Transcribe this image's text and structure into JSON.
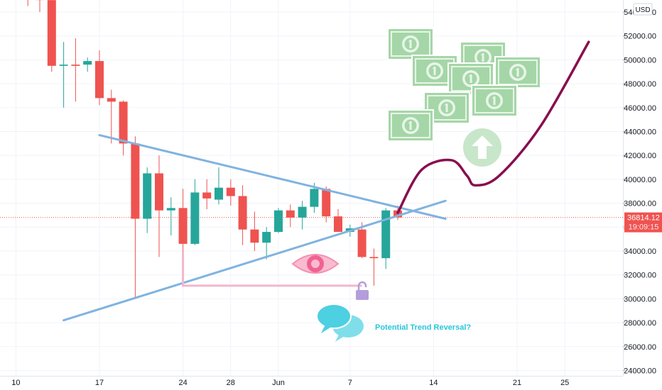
{
  "chart_data": {
    "type": "candlestick",
    "currency_label": "USD",
    "y_axis": {
      "min": 23000,
      "max": 55000,
      "ticks": [
        24000,
        26000,
        28000,
        30000,
        32000,
        34000,
        36000,
        38000,
        40000,
        42000,
        44000,
        46000,
        48000,
        50000,
        52000,
        54000
      ],
      "tick_labels": [
        "24000.00",
        "26000.00",
        "28000.00",
        "30000.00",
        "32000.00",
        "34000.00",
        "36000.00",
        "38000.00",
        "40000.00",
        "42000.00",
        "44000.00",
        "46000.00",
        "48000.00",
        "50000.00",
        "52000.00",
        "54000.00"
      ]
    },
    "x_axis": {
      "ticks": [
        {
          "index": -1,
          "label": "10"
        },
        {
          "index": 6,
          "label": "17"
        },
        {
          "index": 13,
          "label": "24"
        },
        {
          "index": 17,
          "label": "28"
        },
        {
          "index": 21,
          "label": "Jun"
        },
        {
          "index": 27,
          "label": "7"
        },
        {
          "index": 34,
          "label": "14"
        },
        {
          "index": 41,
          "label": "21"
        },
        {
          "index": 45,
          "label": "25"
        }
      ],
      "bar_count": 53
    },
    "current_price": {
      "value": 36814.12,
      "label": "36814.12",
      "countdown": "19:09:15"
    },
    "candles": [
      {
        "o": 57000,
        "h": 58000,
        "l": 54500,
        "c": 56000
      },
      {
        "o": 56000,
        "h": 57000,
        "l": 54000,
        "c": 55000
      },
      {
        "o": 55000,
        "h": 56000,
        "l": 49000,
        "c": 49500
      },
      {
        "o": 49500,
        "h": 51500,
        "l": 46000,
        "c": 49600
      },
      {
        "o": 49600,
        "h": 51800,
        "l": 46500,
        "c": 49500
      },
      {
        "o": 49600,
        "h": 50200,
        "l": 49000,
        "c": 49900
      },
      {
        "o": 49900,
        "h": 50800,
        "l": 46200,
        "c": 46800
      },
      {
        "o": 46800,
        "h": 47500,
        "l": 43000,
        "c": 46500
      },
      {
        "o": 46500,
        "h": 46600,
        "l": 42000,
        "c": 43000
      },
      {
        "o": 43000,
        "h": 43600,
        "l": 30000,
        "c": 36700
      },
      {
        "o": 36700,
        "h": 41000,
        "l": 35500,
        "c": 40500
      },
      {
        "o": 40500,
        "h": 42000,
        "l": 33500,
        "c": 37400
      },
      {
        "o": 37400,
        "h": 38500,
        "l": 35300,
        "c": 37600
      },
      {
        "o": 37600,
        "h": 39200,
        "l": 33800,
        "c": 34600
      },
      {
        "o": 34600,
        "h": 40000,
        "l": 34500,
        "c": 38900
      },
      {
        "o": 38900,
        "h": 40000,
        "l": 37500,
        "c": 38400
      },
      {
        "o": 38300,
        "h": 41000,
        "l": 37900,
        "c": 39300
      },
      {
        "o": 39300,
        "h": 40000,
        "l": 37800,
        "c": 38600
      },
      {
        "o": 38600,
        "h": 39500,
        "l": 34500,
        "c": 35800
      },
      {
        "o": 35800,
        "h": 37300,
        "l": 34000,
        "c": 34700
      },
      {
        "o": 34700,
        "h": 36000,
        "l": 33300,
        "c": 35600
      },
      {
        "o": 35600,
        "h": 37600,
        "l": 35500,
        "c": 37400
      },
      {
        "o": 37400,
        "h": 37900,
        "l": 36000,
        "c": 36800
      },
      {
        "o": 36800,
        "h": 38200,
        "l": 35800,
        "c": 37700
      },
      {
        "o": 37700,
        "h": 39700,
        "l": 37200,
        "c": 39200
      },
      {
        "o": 39200,
        "h": 39400,
        "l": 36400,
        "c": 36900
      },
      {
        "o": 36900,
        "h": 37500,
        "l": 35600,
        "c": 35600
      },
      {
        "o": 35600,
        "h": 36200,
        "l": 35200,
        "c": 35900
      },
      {
        "o": 35800,
        "h": 36400,
        "l": 33400,
        "c": 33500
      },
      {
        "o": 33500,
        "h": 34200,
        "l": 31100,
        "c": 33400
      },
      {
        "o": 33400,
        "h": 37600,
        "l": 32500,
        "c": 37400
      },
      {
        "o": 37400,
        "h": 37800,
        "l": 36600,
        "c": 36814
      }
    ],
    "annotations": {
      "reversal_text": "Potential Trend Reversal?",
      "triangle_upper": {
        "from": {
          "index": 6,
          "price": 43700
        },
        "to": {
          "index": 35,
          "price": 36700
        }
      },
      "triangle_lower": {
        "from": {
          "index": 3,
          "price": 28200
        },
        "to": {
          "index": 35,
          "price": 38200
        }
      },
      "support_level": {
        "price": 31100,
        "from_index": 13,
        "to_index": 28
      },
      "projection": [
        {
          "index": 31,
          "price": 37200
        },
        {
          "index": 33,
          "price": 40800
        },
        {
          "index": 35.5,
          "price": 41600
        },
        {
          "index": 36.8,
          "price": 40300
        },
        {
          "index": 37.5,
          "price": 39500
        },
        {
          "index": 39.5,
          "price": 40300
        },
        {
          "index": 43,
          "price": 44500
        },
        {
          "index": 47,
          "price": 51500
        }
      ]
    },
    "colors": {
      "up": "#26a69a",
      "down": "#ef5350",
      "trendline": "#80b3e0",
      "projection": "#880e4f",
      "support": "#f4b6cd",
      "price_tag": "#ef5350",
      "annotation_text": "#26c6da",
      "money": "#a5d6a7"
    }
  }
}
